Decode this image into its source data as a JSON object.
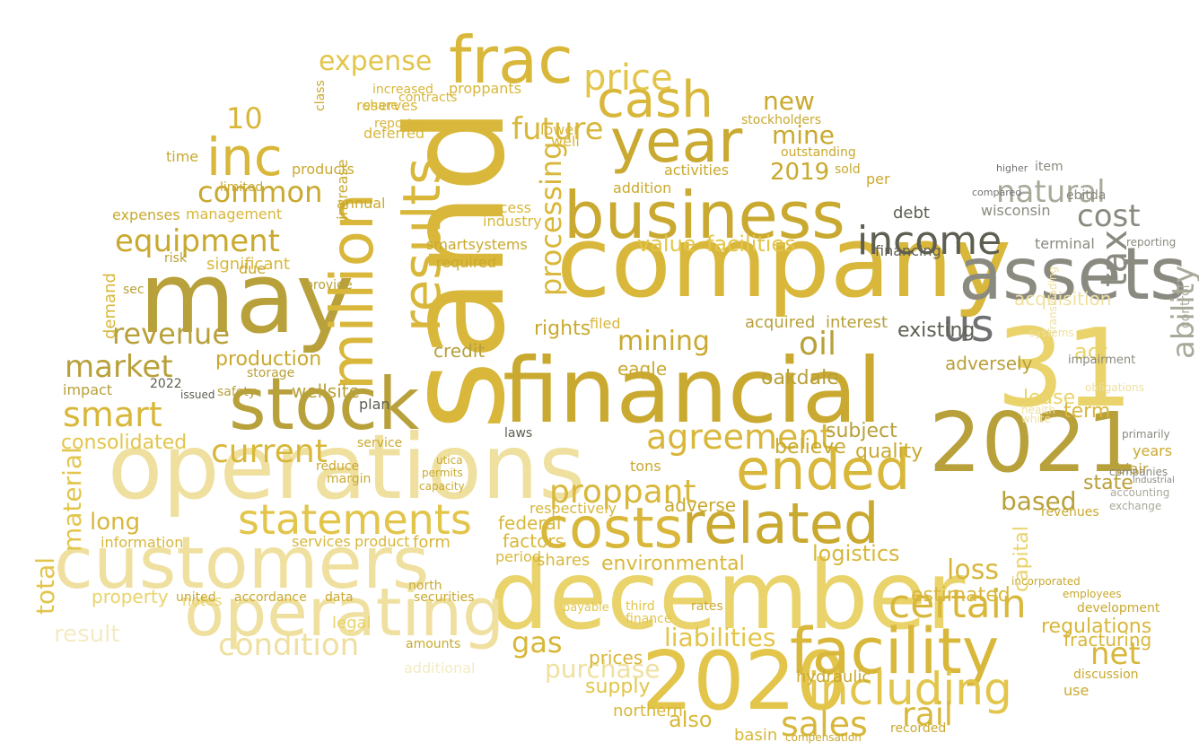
{
  "palette": [
    "#b8a03a",
    "#c9a92f",
    "#d8b73a",
    "#e2c54a",
    "#e9d36a",
    "#efe0a0",
    "#f4ebc4",
    "#8a8a80",
    "#5e5e52",
    "#6f7072",
    "#a9a99a"
  ],
  "words": [
    {
      "text": "sand",
      "color": "#d8b73a"
    },
    {
      "text": "company",
      "color": "#d8b73a"
    },
    {
      "text": "financial",
      "color": "#c9a92f"
    },
    {
      "text": "operations",
      "color": "#efe0a0"
    },
    {
      "text": "december",
      "color": "#e9d36a"
    },
    {
      "text": "customers",
      "color": "#efe0a0"
    },
    {
      "text": "may",
      "color": "#b8a03a"
    },
    {
      "text": "2021",
      "color": "#b8a03a"
    },
    {
      "text": "31",
      "color": "#e9d36a"
    },
    {
      "text": "2020",
      "color": "#e2c54a"
    },
    {
      "text": "assets",
      "color": "#8a8a80"
    },
    {
      "text": "business",
      "color": "#c9a92f"
    },
    {
      "text": "frac",
      "color": "#d8b73a"
    },
    {
      "text": "stock",
      "color": "#b8a03a"
    },
    {
      "text": "operating",
      "color": "#efe0a0"
    },
    {
      "text": "facility",
      "color": "#d8b73a"
    },
    {
      "text": "ended",
      "color": "#d8b73a"
    },
    {
      "text": "costs",
      "color": "#d8b73a"
    },
    {
      "text": "related",
      "color": "#c9a92f"
    },
    {
      "text": "year",
      "color": "#c9a92f"
    },
    {
      "text": "cash",
      "color": "#d8b73a"
    },
    {
      "text": "million",
      "color": "#d8b73a"
    },
    {
      "text": "results",
      "color": "#d8b73a"
    },
    {
      "text": "inc",
      "color": "#d8b73a"
    },
    {
      "text": "statements",
      "color": "#e2c54a"
    },
    {
      "text": "including",
      "color": "#e2c54a"
    },
    {
      "text": "certain",
      "color": "#d8b73a"
    },
    {
      "text": "income",
      "color": "#5e5e52"
    },
    {
      "text": "us",
      "color": "#6f7072"
    },
    {
      "text": "tax",
      "color": "#8a8a80"
    },
    {
      "text": "ability",
      "color": "#a9a99a"
    },
    {
      "text": "price",
      "color": "#e2c54a"
    },
    {
      "text": "common",
      "color": "#c9a92f"
    },
    {
      "text": "equipment",
      "color": "#c9a92f"
    },
    {
      "text": "market",
      "color": "#b8a03a"
    },
    {
      "text": "revenue",
      "color": "#b8a03a"
    },
    {
      "text": "smart",
      "color": "#d8b73a"
    },
    {
      "text": "current",
      "color": "#d8b73a"
    },
    {
      "text": "agreement",
      "color": "#d8b73a"
    },
    {
      "text": "condition",
      "color": "#efe0a0"
    },
    {
      "text": "proppant",
      "color": "#d8b73a"
    },
    {
      "text": "oil",
      "color": "#b8a03a"
    },
    {
      "text": "net",
      "color": "#d8b73a"
    },
    {
      "text": "natural",
      "color": "#a9a99a"
    },
    {
      "text": "cost",
      "color": "#8a8a80"
    },
    {
      "text": "future",
      "color": "#d8b73a"
    },
    {
      "text": "mining",
      "color": "#c9a92f"
    },
    {
      "text": "sales",
      "color": "#d8b73a"
    },
    {
      "text": "rail",
      "color": "#d8b73a"
    },
    {
      "text": "loss",
      "color": "#d8b73a"
    },
    {
      "text": "gas",
      "color": "#d8b73a"
    },
    {
      "text": "purchase",
      "color": "#efe0a0"
    },
    {
      "text": "liabilities",
      "color": "#e2c54a"
    },
    {
      "text": "value",
      "color": "#e2c54a"
    },
    {
      "text": "facilities",
      "color": "#e2c54a"
    },
    {
      "text": "processing",
      "color": "#d8b73a"
    },
    {
      "text": "expense",
      "color": "#e2c54a"
    },
    {
      "text": "new",
      "color": "#c9a92f"
    },
    {
      "text": "mine",
      "color": "#c9a92f"
    },
    {
      "text": "2019",
      "color": "#c9a92f"
    },
    {
      "text": "10",
      "color": "#d8b73a"
    },
    {
      "text": "total",
      "color": "#e2c54a"
    },
    {
      "text": "material",
      "color": "#e2c54a"
    },
    {
      "text": "long",
      "color": "#d8b73a"
    },
    {
      "text": "result",
      "color": "#f4ebc4"
    },
    {
      "text": "based",
      "color": "#b8a03a"
    },
    {
      "text": "estimated",
      "color": "#d8b73a"
    },
    {
      "text": "term",
      "color": "#d8b73a"
    },
    {
      "text": "capital",
      "color": "#e9d36a"
    },
    {
      "text": "regulations",
      "color": "#d8b73a"
    },
    {
      "text": "fracturing",
      "color": "#d8b73a"
    },
    {
      "text": "logistics",
      "color": "#d8b73a"
    },
    {
      "text": "environmental",
      "color": "#d8b73a"
    },
    {
      "text": "consolidated",
      "color": "#e2c54a"
    },
    {
      "text": "production",
      "color": "#c9a92f"
    },
    {
      "text": "acquisition",
      "color": "#efe0a0"
    },
    {
      "text": "act",
      "color": "#e9d36a"
    },
    {
      "text": "lease",
      "color": "#e9d36a"
    },
    {
      "text": "state",
      "color": "#b8a03a"
    },
    {
      "text": "years",
      "color": "#c9a92f"
    },
    {
      "text": "wisconsin",
      "color": "#8a8a80"
    },
    {
      "text": "terminal",
      "color": "#8a8a80"
    },
    {
      "text": "debt",
      "color": "#5e5e52"
    },
    {
      "text": "financing",
      "color": "#5e5e52"
    },
    {
      "text": "existing",
      "color": "#5e5e52"
    },
    {
      "text": "adversely",
      "color": "#b8a03a"
    },
    {
      "text": "acquired",
      "color": "#b8a03a"
    },
    {
      "text": "interest",
      "color": "#b8a03a"
    },
    {
      "text": "eagle",
      "color": "#c9a92f"
    },
    {
      "text": "oakdale",
      "color": "#b8a03a"
    },
    {
      "text": "wellsite",
      "color": "#b8a03a"
    },
    {
      "text": "credit",
      "color": "#b8a03a"
    },
    {
      "text": "rights",
      "color": "#c9a92f"
    },
    {
      "text": "subject",
      "color": "#b8a03a"
    },
    {
      "text": "believe",
      "color": "#c9a92f"
    },
    {
      "text": "quality",
      "color": "#c9a92f"
    },
    {
      "text": "adverse",
      "color": "#c9a92f"
    },
    {
      "text": "factors",
      "color": "#d8b73a"
    },
    {
      "text": "federal",
      "color": "#d8b73a"
    },
    {
      "text": "shares",
      "color": "#d8b73a"
    },
    {
      "text": "form",
      "color": "#d8b73a"
    },
    {
      "text": "period",
      "color": "#d8b73a"
    },
    {
      "text": "information",
      "color": "#d8b73a"
    },
    {
      "text": "services",
      "color": "#d8b73a"
    },
    {
      "text": "product",
      "color": "#d8b73a"
    },
    {
      "text": "property",
      "color": "#e9d36a"
    },
    {
      "text": "notes",
      "color": "#e9d36a"
    },
    {
      "text": "legal",
      "color": "#e9d36a"
    },
    {
      "text": "additional",
      "color": "#f4ebc4"
    },
    {
      "text": "supply",
      "color": "#e2c54a"
    },
    {
      "text": "prices",
      "color": "#d8b73a"
    },
    {
      "text": "also",
      "color": "#d8b73a"
    },
    {
      "text": "basin",
      "color": "#d8b73a"
    },
    {
      "text": "northern",
      "color": "#d8b73a"
    },
    {
      "text": "respectively",
      "color": "#d8b73a"
    },
    {
      "text": "demand",
      "color": "#d8b73a"
    },
    {
      "text": "significant",
      "color": "#d8b73a"
    },
    {
      "text": "management",
      "color": "#d8b73a"
    },
    {
      "text": "reserves",
      "color": "#d8b73a"
    },
    {
      "text": "contracts",
      "color": "#d8b73a"
    },
    {
      "text": "deferred",
      "color": "#d8b73a"
    },
    {
      "text": "increased",
      "color": "#d8b73a"
    },
    {
      "text": "proppants",
      "color": "#d8b73a"
    },
    {
      "text": "share",
      "color": "#d8b73a"
    },
    {
      "text": "report",
      "color": "#d8b73a"
    },
    {
      "text": "lower",
      "color": "#d8b73a"
    },
    {
      "text": "well",
      "color": "#d8b73a"
    },
    {
      "text": "access",
      "color": "#d8b73a"
    },
    {
      "text": "industry",
      "color": "#d8b73a"
    },
    {
      "text": "smartsystems",
      "color": "#c9a92f"
    },
    {
      "text": "required",
      "color": "#c9a92f"
    },
    {
      "text": "filed",
      "color": "#d8b73a"
    },
    {
      "text": "activities",
      "color": "#c9a92f"
    },
    {
      "text": "addition",
      "color": "#c9a92f"
    },
    {
      "text": "stockholders",
      "color": "#c9a92f"
    },
    {
      "text": "outstanding",
      "color": "#c9a92f"
    },
    {
      "text": "sold",
      "color": "#c9a92f"
    },
    {
      "text": "per",
      "color": "#c9a92f"
    },
    {
      "text": "products",
      "color": "#c9a92f"
    },
    {
      "text": "annual",
      "color": "#c9a92f"
    },
    {
      "text": "time",
      "color": "#c9a92f"
    },
    {
      "text": "expenses",
      "color": "#c9a92f"
    },
    {
      "text": "due",
      "color": "#c9a92f"
    },
    {
      "text": "increase",
      "color": "#c9a92f"
    },
    {
      "text": "class",
      "color": "#c9a92f"
    },
    {
      "text": "limited",
      "color": "#c9a92f"
    },
    {
      "text": "risk",
      "color": "#b8a03a"
    },
    {
      "text": "sec",
      "color": "#b8a03a"
    },
    {
      "text": "provide",
      "color": "#b8a03a"
    },
    {
      "text": "storage",
      "color": "#b8a03a"
    },
    {
      "text": "impact",
      "color": "#b8a03a"
    },
    {
      "text": "safety",
      "color": "#b8a03a"
    },
    {
      "text": "2022",
      "color": "#5e5e52"
    },
    {
      "text": "issued",
      "color": "#5e5e52"
    },
    {
      "text": "plan",
      "color": "#5e5e52"
    },
    {
      "text": "laws",
      "color": "#5e5e52"
    },
    {
      "text": "tons",
      "color": "#c9a92f"
    },
    {
      "text": "reduce",
      "color": "#c9a92f"
    },
    {
      "text": "margin",
      "color": "#c9a92f"
    },
    {
      "text": "capacity",
      "color": "#c9a92f"
    },
    {
      "text": "permits",
      "color": "#c9a92f"
    },
    {
      "text": "utica",
      "color": "#c9a92f"
    },
    {
      "text": "service",
      "color": "#c9a92f"
    },
    {
      "text": "data",
      "color": "#c9a92f"
    },
    {
      "text": "united",
      "color": "#c9a92f"
    },
    {
      "text": "accordance",
      "color": "#c9a92f"
    },
    {
      "text": "securities",
      "color": "#c9a92f"
    },
    {
      "text": "amounts",
      "color": "#c9a92f"
    },
    {
      "text": "north",
      "color": "#c9a92f"
    },
    {
      "text": "payable",
      "color": "#e2c54a"
    },
    {
      "text": "third",
      "color": "#e2c54a"
    },
    {
      "text": "finance",
      "color": "#e2c54a"
    },
    {
      "text": "rates",
      "color": "#c9a92f"
    },
    {
      "text": "hydraulic",
      "color": "#c9a92f"
    },
    {
      "text": "recorded",
      "color": "#c9a92f"
    },
    {
      "text": "compensation",
      "color": "#c9a92f"
    },
    {
      "text": "use",
      "color": "#c9a92f"
    },
    {
      "text": "discussion",
      "color": "#c9a92f"
    },
    {
      "text": "development",
      "color": "#c9a92f"
    },
    {
      "text": "employees",
      "color": "#c9a92f"
    },
    {
      "text": "incorporated",
      "color": "#c9a92f"
    },
    {
      "text": "revenues",
      "color": "#c9a92f"
    },
    {
      "text": "blair",
      "color": "#b8a03a"
    },
    {
      "text": "primarily",
      "color": "#8a8a80"
    },
    {
      "text": "companies",
      "color": "#8a8a80"
    },
    {
      "text": "ebitda",
      "color": "#8a8a80"
    },
    {
      "text": "item",
      "color": "#8a8a80"
    },
    {
      "text": "higher",
      "color": "#6f7072"
    },
    {
      "text": "compared",
      "color": "#6f7072"
    },
    {
      "text": "reporting",
      "color": "#8a8a80"
    },
    {
      "text": "control",
      "color": "#a9a99a"
    },
    {
      "text": "impairment",
      "color": "#8a8a80"
    },
    {
      "text": "transloading",
      "color": "#efe0a0"
    },
    {
      "text": "systems",
      "color": "#efe0a0"
    },
    {
      "text": "obligations",
      "color": "#efe0a0"
    },
    {
      "text": "health",
      "color": "#efe0a0"
    },
    {
      "text": "white",
      "color": "#efe0a0"
    },
    {
      "text": "accounting",
      "color": "#a9a99a"
    },
    {
      "text": "exchange",
      "color": "#a9a99a"
    },
    {
      "text": "industrial",
      "color": "#8a8a80"
    }
  ]
}
